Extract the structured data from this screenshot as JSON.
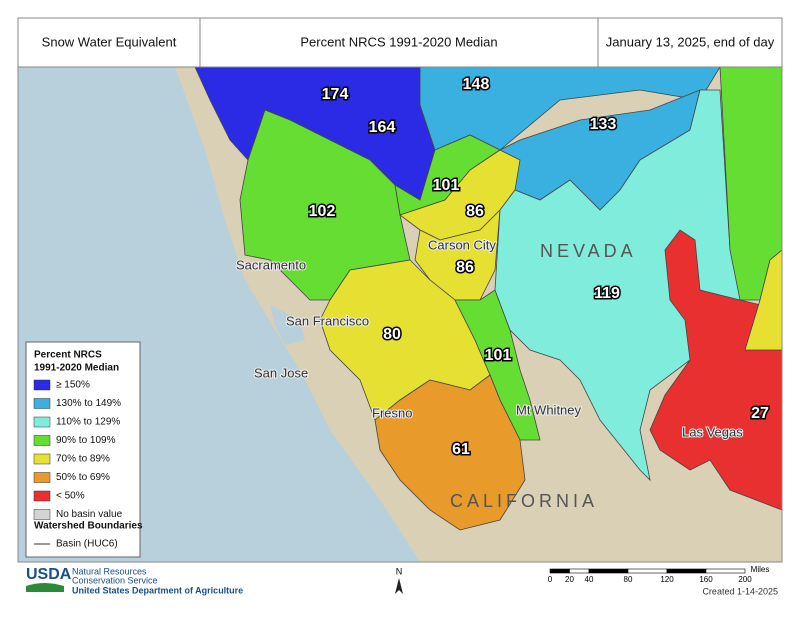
{
  "header": {
    "left": "Snow Water Equivalent",
    "center": "Percent NRCS 1991-2020 Median",
    "right": "January 13, 2025, end of day"
  },
  "basins": [
    174,
    148,
    164,
    133,
    101,
    102,
    86,
    86,
    119,
    80,
    101,
    27,
    61
  ],
  "places": [
    "NEVADA",
    "CALIFORNIA",
    "Sacramento",
    "San Francisco",
    "San Jose",
    "Fresno",
    "Carson City",
    "Mt Whitney",
    "Las Vegas"
  ],
  "legend": {
    "title": [
      "Percent NRCS",
      "1991-2020 Median"
    ],
    "items": [
      {
        "label": "≥ 150%",
        "color": "#2b2be6"
      },
      {
        "label": "130% to 149%",
        "color": "#3ab0e0"
      },
      {
        "label": "110% to 129%",
        "color": "#80ecdc"
      },
      {
        "label": "90% to 109%",
        "color": "#66dd33"
      },
      {
        "label": "70% to 89%",
        "color": "#e6e033"
      },
      {
        "label": "50% to 69%",
        "color": "#e89a2a"
      },
      {
        "label": "< 50%",
        "color": "#e83030"
      },
      {
        "label": "No basin value",
        "color": "#d3d3d3"
      }
    ],
    "boundaries_title": "Watershed Boundaries",
    "boundary_item": "Basin (HUC6)"
  },
  "north": "N",
  "scale": {
    "unit": "Miles",
    "ticks": [
      0,
      20,
      40,
      80,
      120,
      160,
      200
    ]
  },
  "footer": {
    "agency": "USDA",
    "line1": "Natural Resources",
    "line2": "Conservation Service",
    "department": "United States Department of Agriculture",
    "created": "Created 1-14-2025"
  }
}
